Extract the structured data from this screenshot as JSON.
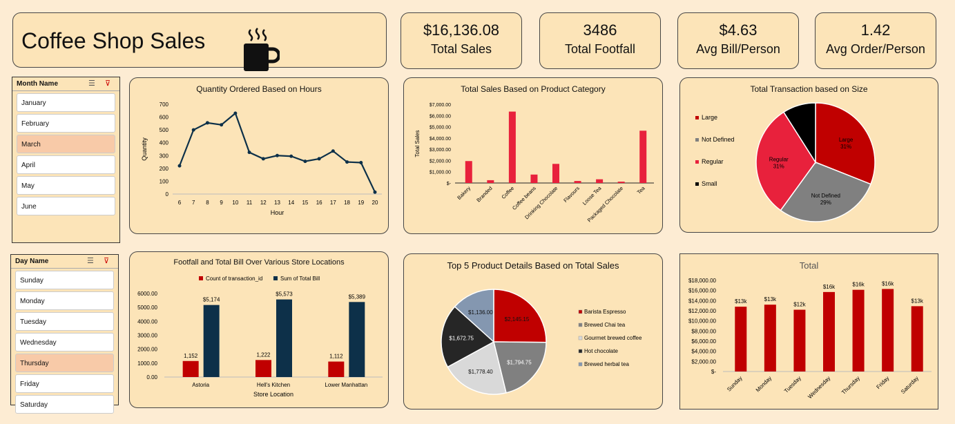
{
  "header": {
    "title": "Coffee Shop Sales",
    "icon": "coffee-cup-icon"
  },
  "kpis": [
    {
      "value": "$16,136.08",
      "label": "Total Sales"
    },
    {
      "value": "3486",
      "label": "Total Footfall"
    },
    {
      "value": "$4.63",
      "label": "Avg Bill/Person"
    },
    {
      "value": "1.42",
      "label": "Avg Order/Person"
    }
  ],
  "month_slicer": {
    "title": "Month Name",
    "items": [
      "January",
      "February",
      "March",
      "April",
      "May",
      "June"
    ],
    "selected": "March"
  },
  "day_slicer": {
    "title": "Day Name",
    "items": [
      "Sunday",
      "Monday",
      "Tuesday",
      "Wednesday",
      "Thursday",
      "Friday",
      "Saturday"
    ],
    "selected": "Thursday"
  },
  "chart_data": [
    {
      "id": "hours",
      "type": "line",
      "title": "Quantity Ordered Based on Hours",
      "xlabel": "Hour",
      "ylabel": "Quantity",
      "x": [
        6,
        7,
        8,
        9,
        10,
        11,
        12,
        13,
        14,
        15,
        16,
        17,
        18,
        19,
        20
      ],
      "values": [
        220,
        500,
        555,
        540,
        630,
        325,
        275,
        300,
        295,
        255,
        275,
        335,
        250,
        245,
        15
      ],
      "ylim": [
        0,
        700
      ],
      "yticks": [
        0,
        100,
        200,
        300,
        400,
        500,
        600,
        700
      ],
      "color": "#0d3049"
    },
    {
      "id": "category",
      "type": "bar",
      "title": "Total Sales Based on Product Category",
      "ylabel": "Total Sales",
      "categories": [
        "Bakery",
        "Branded",
        "Coffee",
        "Coffee beans",
        "Drinking Chocolate",
        "Flavours",
        "Loose Tea",
        "Packaged Chocolate",
        "Tea"
      ],
      "values": [
        1950,
        250,
        6350,
        750,
        1700,
        180,
        330,
        120,
        4650
      ],
      "ylim": [
        0,
        7000
      ],
      "ytick_labels": [
        "$-",
        "$1,000.00",
        "$2,000.00",
        "$3,000.00",
        "$4,000.00",
        "$5,000.00",
        "$6,000.00",
        "$7,000.00"
      ],
      "color": "#e8213c"
    },
    {
      "id": "size",
      "type": "pie",
      "title": "Total Transaction based on Size",
      "legend_position": "left",
      "slices": [
        {
          "name": "Large",
          "value": 31,
          "label": "Large",
          "pct": "31%",
          "color": "#c00000"
        },
        {
          "name": "Not Defined",
          "value": 29,
          "label": "Not Defined",
          "pct": "29%",
          "color": "#808080"
        },
        {
          "name": "Regular",
          "value": 31,
          "label": "Regular",
          "pct": "31%",
          "color": "#e8213c"
        },
        {
          "name": "Small",
          "value": 9,
          "label": "",
          "pct": "",
          "color": "#000000"
        }
      ]
    },
    {
      "id": "store",
      "type": "bar",
      "title": "Footfall and Total Bill Over Various Store Locations",
      "xlabel": "Store Location",
      "categories": [
        "Astoria",
        "Hell's Kitchen",
        "Lower Manhattan"
      ],
      "series": [
        {
          "name": "Count of transaction_id",
          "values": [
            1152,
            1222,
            1112
          ],
          "labels": [
            "1,152",
            "1,222",
            "1,112"
          ],
          "color": "#c00000"
        },
        {
          "name": "Sum of Total Bill",
          "values": [
            5174,
            5573,
            5389
          ],
          "labels": [
            "$5,174",
            "$5,573",
            "$5,389"
          ],
          "color": "#0d3049"
        }
      ],
      "ylim": [
        0,
        6000
      ],
      "ytick_labels": [
        "0.00",
        "1000.00",
        "2000.00",
        "3000.00",
        "4000.00",
        "5000.00",
        "6000.00"
      ]
    },
    {
      "id": "top5",
      "type": "pie",
      "title": "Top 5 Product Details Based on Total Sales",
      "legend_position": "right",
      "slices": [
        {
          "name": "Barista Espresso",
          "value": 2145.15,
          "label": "$2,145.15",
          "color": "#c00000"
        },
        {
          "name": "Brewed Chai tea",
          "value": 1794.75,
          "label": "$1,794.75",
          "color": "#808080"
        },
        {
          "name": "Gourmet brewed coffee",
          "value": 1778.4,
          "label": "$1,778.40",
          "color": "#d9d9d9"
        },
        {
          "name": "Hot chocolate",
          "value": 1672.75,
          "label": "$1,672.75",
          "color": "#262626"
        },
        {
          "name": "Brewed herbal tea",
          "value": 1136.0,
          "label": "$1,136.00",
          "color": "#8497b0"
        }
      ]
    },
    {
      "id": "days",
      "type": "bar",
      "title": "Total",
      "categories": [
        "Sunday",
        "Monday",
        "Tuesday",
        "Wednesday",
        "Thursday",
        "Friday",
        "Saturday"
      ],
      "values": [
        12800,
        13200,
        12200,
        15700,
        16136,
        16300,
        12900
      ],
      "labels": [
        "$13k",
        "$13k",
        "$12k",
        "$16k",
        "$16k",
        "$16k",
        "$13k"
      ],
      "ylim": [
        0,
        18000
      ],
      "ytick_labels": [
        "$-",
        "$2,000.00",
        "$4,000.00",
        "$6,000.00",
        "$8,000.00",
        "$10,000.00",
        "$12,000.00",
        "$14,000.00",
        "$16,000.00",
        "$18,000.00"
      ],
      "color": "#c00000"
    }
  ]
}
